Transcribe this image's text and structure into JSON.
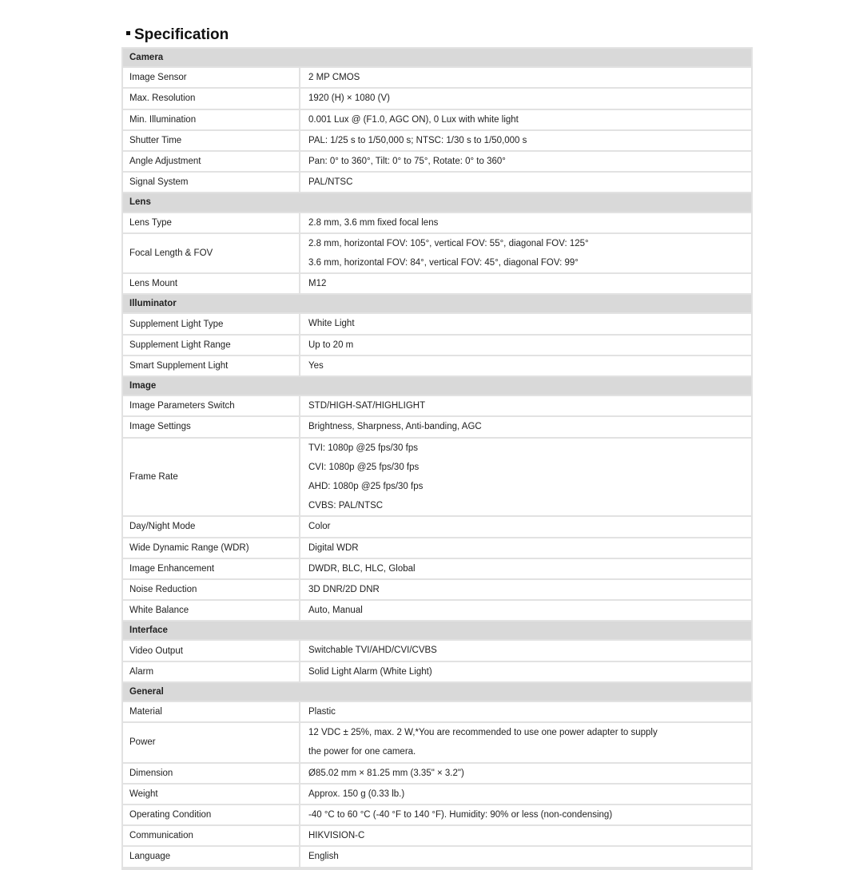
{
  "title": "Specification",
  "sections": [
    {
      "name": "Camera",
      "rows": [
        {
          "label": "Image Sensor",
          "values": [
            "2 MP CMOS"
          ]
        },
        {
          "label": "Max. Resolution",
          "values": [
            "1920 (H) × 1080 (V)"
          ]
        },
        {
          "label": "Min. Illumination",
          "values": [
            "0.001 Lux @ (F1.0, AGC ON),    0 Lux with white light"
          ]
        },
        {
          "label": "Shutter Time",
          "values": [
            "PAL: 1/25 s to 1/50,000 s; NTSC: 1/30 s to 1/50,000 s"
          ]
        },
        {
          "label": "Angle Adjustment",
          "values": [
            "Pan: 0° to 360°, Tilt: 0° to 75°, Rotate: 0° to 360°"
          ]
        },
        {
          "label": "Signal System",
          "values": [
            "PAL/NTSC"
          ]
        }
      ]
    },
    {
      "name": "Lens",
      "rows": [
        {
          "label": "Lens Type",
          "values": [
            "2.8 mm, 3.6 mm fixed focal lens"
          ]
        },
        {
          "label": "Focal Length  &  FOV",
          "values": [
            "2.8 mm, horizontal FOV: 105°, vertical FOV: 55°, diagonal FOV: 125°",
            "3.6 mm, horizontal FOV: 84°, vertical FOV: 45°, diagonal FOV: 99°"
          ]
        },
        {
          "label": "Lens Mount",
          "values": [
            "M12"
          ]
        }
      ]
    },
    {
      "name": "Illuminator",
      "rows": [
        {
          "label": "Supplement Light Type",
          "values": [
            "White Light"
          ]
        },
        {
          "label": "Supplement Light Range",
          "values": [
            "Up to 20 m"
          ]
        },
        {
          "label": "Smart Supplement Light",
          "values": [
            "Yes"
          ]
        }
      ]
    },
    {
      "name": "Image",
      "rows": [
        {
          "label": "Image Parameters Switch",
          "values": [
            "STD/HIGH-SAT/HIGHLIGHT"
          ]
        },
        {
          "label": "Image Settings",
          "values": [
            "Brightness, Sharpness, Anti-banding, AGC"
          ]
        },
        {
          "label": "Frame Rate",
          "values": [
            "TVI: 1080p @25 fps/30 fps",
            "CVI: 1080p @25 fps/30 fps",
            "AHD: 1080p @25 fps/30 fps",
            "CVBS: PAL/NTSC"
          ]
        },
        {
          "label": "Day/Night Mode",
          "values": [
            "Color"
          ]
        },
        {
          "label": "Wide Dynamic Range (WDR)",
          "values": [
            "Digital WDR"
          ]
        },
        {
          "label": "Image Enhancement",
          "values": [
            "DWDR, BLC, HLC, Global"
          ]
        },
        {
          "label": "Noise Reduction",
          "values": [
            "3D DNR/2D DNR"
          ]
        },
        {
          "label": "White Balance",
          "values": [
            "Auto, Manual"
          ]
        }
      ]
    },
    {
      "name": "Interface",
      "rows": [
        {
          "label": "Video Output",
          "values": [
            "Switchable TVI/AHD/CVI/CVBS"
          ]
        },
        {
          "label": "Alarm",
          "values": [
            "Solid Light Alarm (White Light)"
          ]
        }
      ]
    },
    {
      "name": "General",
      "rows": [
        {
          "label": "Material",
          "values": [
            "Plastic"
          ]
        },
        {
          "label": "Power",
          "values": [
            "12 VDC ± 25%, max. 2 W,*You are recommended to use one power adapter to supply",
            "the power for one camera."
          ]
        },
        {
          "label": "Dimension",
          "values": [
            "Ø85.02 mm × 81.25 mm (3.35\" × 3.2\")"
          ]
        },
        {
          "label": "Weight",
          "values": [
            "Approx. 150 g (0.33 lb.)"
          ]
        },
        {
          "label": "Operating Condition",
          "values": [
            "-40 °C to 60 °C (-40 °F to 140 °F). Humidity: 90% or less (non-condensing)"
          ]
        },
        {
          "label": "Communication",
          "values": [
            "HIKVISION-C"
          ]
        },
        {
          "label": "Language",
          "values": [
            "English"
          ]
        }
      ]
    }
  ]
}
